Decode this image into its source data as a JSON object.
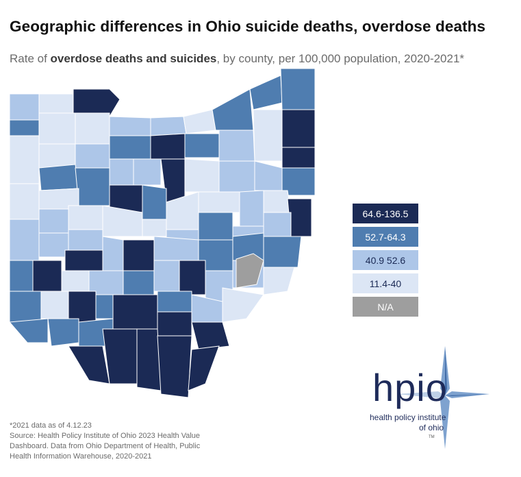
{
  "title": "Geographic differences in Ohio suicide deaths, overdose deaths",
  "subtitle_prefix": "Rate of ",
  "subtitle_bold": "overdose deaths and suicides",
  "subtitle_suffix": ", by county, per 100,000 population, 2020-2021*",
  "colors": {
    "c1": "#1b2a55",
    "c2": "#4f7db0",
    "c3": "#adc6e8",
    "c4": "#dce6f5",
    "na": "#9e9e9e"
  },
  "legend": [
    {
      "label": "64.6-136.5",
      "color": "#1b2a55",
      "text_color": "#ffffff"
    },
    {
      "label": "52.7-64.3",
      "color": "#4f7db0",
      "text_color": "#ffffff"
    },
    {
      "label": "40.9 52.6",
      "color": "#adc6e8",
      "text_color": "#1b2a55"
    },
    {
      "label": "11.4-40",
      "color": "#dce6f5",
      "text_color": "#1b2a55"
    },
    {
      "label": "N/A",
      "color": "#9e9e9e",
      "text_color": "#ffffff"
    }
  ],
  "footnote": {
    "line1": "*2021 data as of 4.12.23",
    "line2": "Source: Health Policy Institute of Ohio 2023 Health Value Dashboard. Data from Ohio Department of Health, Public Health Information Warehouse, 2020-2021"
  },
  "logo": {
    "text": "hpio",
    "line1": "health policy institute",
    "line2": "of ohio",
    "tm": "TM"
  }
}
